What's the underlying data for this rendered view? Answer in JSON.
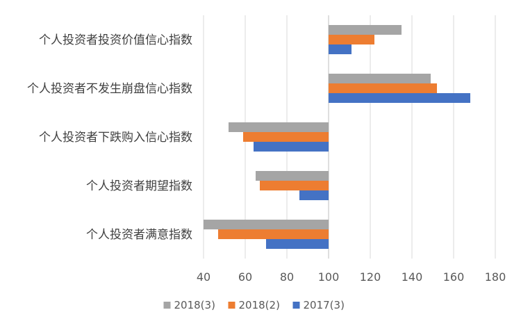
{
  "chart_data": {
    "type": "bar",
    "orientation": "horizontal",
    "base_value": 100,
    "categories": [
      "个人投资者投资价值信心指数",
      "个人投资者不发生崩盘信心指数",
      "个人投资者下跌购入信心指数",
      "个人投资者期望指数",
      "个人投资者满意指数"
    ],
    "series": [
      {
        "name": "2018(3)",
        "color": "#a5a5a5",
        "values": [
          135,
          149,
          52,
          65,
          40
        ]
      },
      {
        "name": "2018(2)",
        "color": "#ed7d31",
        "values": [
          122,
          152,
          59,
          67,
          47
        ]
      },
      {
        "name": "2017(3)",
        "color": "#4472c4",
        "values": [
          111,
          168,
          64,
          86,
          70
        ]
      }
    ],
    "xlim": [
      40,
      180
    ],
    "xticks": [
      "40",
      "60",
      "80",
      "100",
      "120",
      "140",
      "160",
      "180"
    ],
    "grid": true,
    "legend_position": "bottom",
    "title": "",
    "xlabel": "",
    "ylabel": ""
  }
}
